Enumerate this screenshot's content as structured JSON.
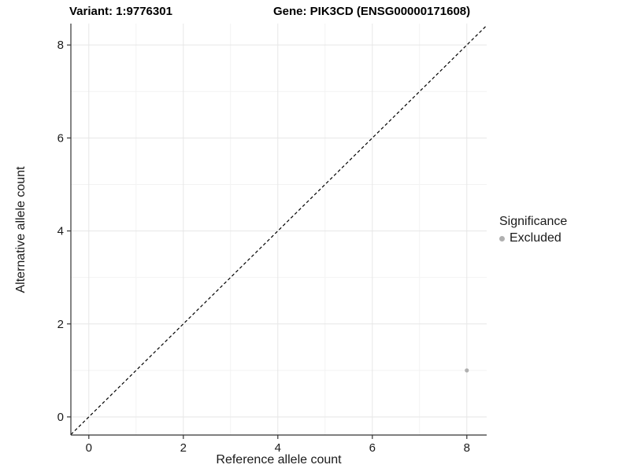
{
  "chart_data": {
    "type": "scatter",
    "titles": {
      "left": "Variant: 1:9776301",
      "right": "Gene: PIK3CD (ENSG00000171608)"
    },
    "xlabel": "Reference allele count",
    "ylabel": "Alternative allele count",
    "xlim": [
      -0.38,
      8.42
    ],
    "ylim": [
      -0.39,
      8.46
    ],
    "x_ticks": [
      0,
      2,
      4,
      6,
      8
    ],
    "y_ticks": [
      0,
      2,
      4,
      6,
      8
    ],
    "x_minor_ticks": [
      1,
      3,
      5,
      7
    ],
    "y_minor_ticks": [
      1,
      3,
      5,
      7
    ],
    "grid": "major+minor",
    "reference_line": {
      "type": "identity y=x",
      "style": "dashed",
      "color": "#000000"
    },
    "series": [
      {
        "name": "Excluded",
        "color": "#b0b0b0",
        "points": [
          {
            "x": 8,
            "y": 1
          }
        ]
      }
    ],
    "legend": {
      "title": "Significance",
      "position": "right",
      "items": [
        {
          "label": "Excluded",
          "color": "#b0b0b0"
        }
      ]
    },
    "colors": {
      "background": "#ffffff",
      "grid_major": "#e6e6e6",
      "grid_minor": "#f3f3f3",
      "axis_line": "#333333",
      "tick_mark": "#333333",
      "tick_label": "#1a1a1a",
      "title_text": "#000000"
    }
  }
}
